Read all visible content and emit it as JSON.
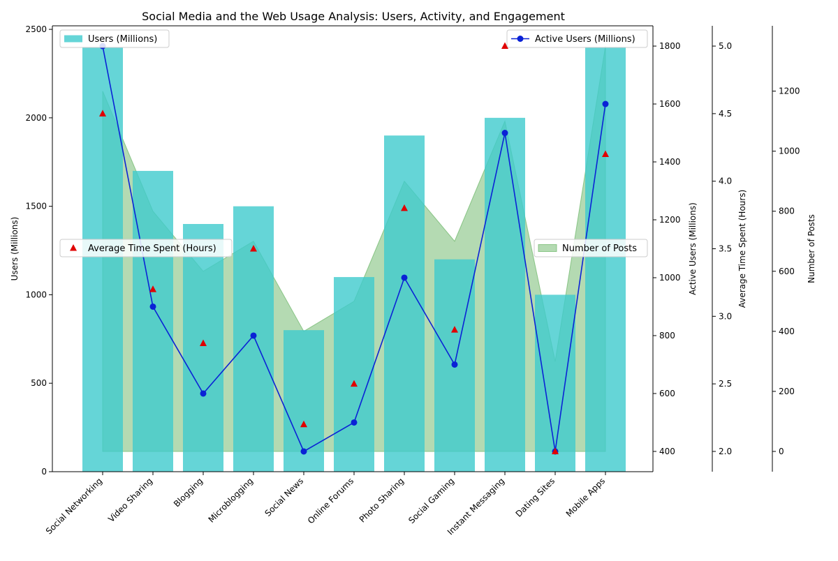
{
  "chart_data": {
    "type": "bar",
    "title": "Social Media and the Web Usage Analysis: Users, Activity, and Engagement",
    "categories": [
      "Social Networking",
      "Video Sharing",
      "Blogging",
      "Microblogging",
      "Social News",
      "Online Forums",
      "Photo Sharing",
      "Social Gaming",
      "Instant Messaging",
      "Dating Sites",
      "Mobile Apps"
    ],
    "series": [
      {
        "name": "Users (Millions)",
        "kind": "bar",
        "axis": "left",
        "color": "#3ecbcd",
        "values": [
          2400,
          1700,
          1400,
          1500,
          800,
          1100,
          1900,
          1200,
          2000,
          1000,
          2400
        ]
      },
      {
        "name": "Active Users (Millions)",
        "kind": "line",
        "axis": "right1",
        "color": "#0a22d6",
        "values": [
          1800,
          900,
          600,
          800,
          400,
          500,
          1000,
          700,
          1500,
          400,
          1600
        ]
      },
      {
        "name": "Average Time Spent (Hours)",
        "kind": "scatter",
        "axis": "right2",
        "color": "#e00000",
        "values": [
          4.5,
          3.2,
          2.8,
          3.5,
          2.2,
          2.5,
          3.8,
          2.9,
          5.0,
          2.0,
          4.2
        ]
      },
      {
        "name": "Number of Posts",
        "kind": "area",
        "axis": "right3",
        "color": "#6ab565",
        "values": [
          1200,
          800,
          600,
          700,
          400,
          500,
          900,
          700,
          1100,
          300,
          1350
        ]
      }
    ],
    "axes": {
      "left": {
        "label": "Users (Millions)",
        "range": [
          0,
          2520
        ],
        "ticks": [
          0,
          500,
          1000,
          1500,
          2000,
          2500
        ]
      },
      "right1": {
        "label": "Active Users (Millions)",
        "range": [
          330,
          1870
        ],
        "ticks": [
          400,
          600,
          800,
          1000,
          1200,
          1400,
          1600,
          1800
        ]
      },
      "right2": {
        "label": "Average Time Spent (Hours)",
        "range": [
          1.85,
          5.15
        ],
        "ticks": [
          2.0,
          2.5,
          3.0,
          3.5,
          4.0,
          4.5,
          5.0
        ]
      },
      "right3": {
        "label": "Number of Posts",
        "range": [
          -67.5,
          1417.5
        ],
        "ticks": [
          0,
          200,
          400,
          600,
          800,
          1000,
          1200
        ]
      }
    },
    "legends": [
      {
        "series": "Users (Millions)",
        "position": "upper-left"
      },
      {
        "series": "Active Users (Millions)",
        "position": "upper-right"
      },
      {
        "series": "Average Time Spent (Hours)",
        "position": "center-left"
      },
      {
        "series": "Number of Posts",
        "position": "center-right"
      }
    ],
    "grid": false
  }
}
